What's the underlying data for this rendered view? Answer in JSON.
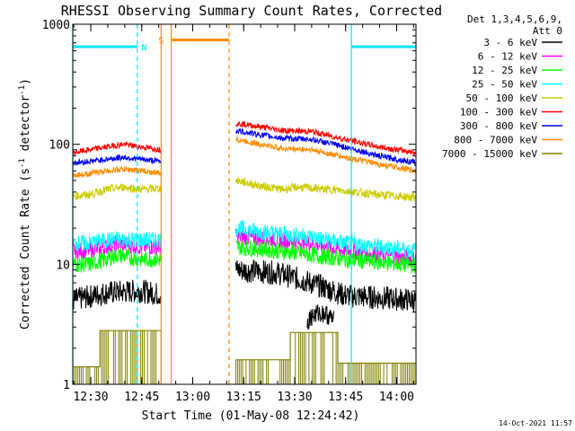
{
  "chart_data": {
    "type": "line",
    "title": "RHESSI Observing Summary Count Rates, Corrected",
    "xlabel": "Start Time (01-May-08 12:24:42)",
    "ylabel_parts": [
      "Corrected Count Rate (s",
      "-1",
      " detector",
      "-1",
      ")"
    ],
    "y_scale": "log",
    "ylim": [
      1,
      1000
    ],
    "xlim_minutes": [
      0,
      101
    ],
    "x_ticks": [
      {
        "t": 5.3,
        "label": "12:30"
      },
      {
        "t": 20.3,
        "label": "12:45"
      },
      {
        "t": 35.3,
        "label": "13:00"
      },
      {
        "t": 50.3,
        "label": "13:15"
      },
      {
        "t": 65.3,
        "label": "13:30"
      },
      {
        "t": 80.3,
        "label": "13:45"
      },
      {
        "t": 95.3,
        "label": "14:00"
      }
    ],
    "y_ticks": [
      {
        "v": 1,
        "label": "1"
      },
      {
        "v": 10,
        "label": "10"
      },
      {
        "v": 100,
        "label": "100"
      },
      {
        "v": 1000,
        "label": "1000"
      }
    ],
    "legend_header": [
      "Det 1,3,4,5,6,9,",
      "Att 0"
    ],
    "legend_placement": "right",
    "series": [
      {
        "name": "3 - 6 keV",
        "color": "#000000",
        "seg1": [
          [
            0,
            5.0
          ],
          [
            10,
            5.8
          ],
          [
            20,
            6.0
          ],
          [
            26,
            5.6
          ]
        ],
        "seg2": [
          [
            48,
            9.0
          ],
          [
            60,
            8.5
          ],
          [
            70,
            7.0
          ],
          [
            80,
            5.5
          ],
          [
            101,
            5.0
          ]
        ],
        "noise": 0.1
      },
      {
        "name": "6 - 12 keV",
        "color": "#ff00ff",
        "seg1": [
          [
            0,
            13
          ],
          [
            5,
            13
          ],
          [
            10,
            14
          ],
          [
            13,
            15
          ],
          [
            20,
            14
          ],
          [
            26,
            14
          ]
        ],
        "seg2": [
          [
            48,
            17
          ],
          [
            60,
            16
          ],
          [
            70,
            15
          ],
          [
            80,
            13
          ],
          [
            101,
            11
          ]
        ],
        "noise": 0.07
      },
      {
        "name": "12 - 25 keV",
        "color": "#00ff00",
        "seg1": [
          [
            0,
            10
          ],
          [
            5,
            10
          ],
          [
            10,
            11
          ],
          [
            13,
            12
          ],
          [
            20,
            11
          ],
          [
            26,
            11
          ]
        ],
        "seg2": [
          [
            48,
            14
          ],
          [
            60,
            13
          ],
          [
            70,
            12
          ],
          [
            80,
            11
          ],
          [
            101,
            9.8
          ]
        ],
        "noise": 0.07
      },
      {
        "name": "25 - 50 keV",
        "color": "#00ffff",
        "seg1": [
          [
            0,
            15
          ],
          [
            5,
            15
          ],
          [
            10,
            16
          ],
          [
            20,
            16
          ],
          [
            26,
            16
          ]
        ],
        "seg2": [
          [
            48,
            20
          ],
          [
            60,
            18
          ],
          [
            70,
            17
          ],
          [
            80,
            15
          ],
          [
            101,
            13
          ]
        ],
        "noise": 0.07
      },
      {
        "name": "50 - 100 keV",
        "color": "#cccc00",
        "seg1": [
          [
            0,
            37
          ],
          [
            5,
            38
          ],
          [
            10,
            42
          ],
          [
            15,
            44
          ],
          [
            20,
            42
          ],
          [
            26,
            43
          ]
        ],
        "seg2": [
          [
            48,
            50
          ],
          [
            55,
            45
          ],
          [
            62,
            42
          ],
          [
            66,
            44
          ],
          [
            70,
            43
          ],
          [
            80,
            41
          ],
          [
            90,
            38
          ],
          [
            101,
            36
          ]
        ],
        "noise": 0.035
      },
      {
        "name": "100 - 300 keV",
        "color": "#ff0000",
        "seg1": [
          [
            0,
            85
          ],
          [
            5,
            90
          ],
          [
            10,
            95
          ],
          [
            15,
            100
          ],
          [
            20,
            95
          ],
          [
            26,
            90
          ]
        ],
        "seg2": [
          [
            48,
            150
          ],
          [
            55,
            140
          ],
          [
            62,
            130
          ],
          [
            70,
            128
          ],
          [
            80,
            110
          ],
          [
            90,
            95
          ],
          [
            101,
            85
          ]
        ],
        "noise": 0.025
      },
      {
        "name": "300 - 800 keV",
        "color": "#0000ff",
        "seg1": [
          [
            0,
            70
          ],
          [
            5,
            72
          ],
          [
            10,
            75
          ],
          [
            15,
            78
          ],
          [
            20,
            75
          ],
          [
            26,
            72
          ]
        ],
        "seg2": [
          [
            48,
            130
          ],
          [
            55,
            120
          ],
          [
            62,
            112
          ],
          [
            70,
            110
          ],
          [
            80,
            95
          ],
          [
            90,
            80
          ],
          [
            101,
            70
          ]
        ],
        "noise": 0.025
      },
      {
        "name": "800 - 7000 keV",
        "color": "#ff8c00",
        "seg1": [
          [
            0,
            55
          ],
          [
            5,
            57
          ],
          [
            10,
            60
          ],
          [
            15,
            62
          ],
          [
            20,
            60
          ],
          [
            26,
            57
          ]
        ],
        "seg2": [
          [
            48,
            110
          ],
          [
            55,
            100
          ],
          [
            62,
            92
          ],
          [
            70,
            90
          ],
          [
            80,
            78
          ],
          [
            90,
            68
          ],
          [
            101,
            60
          ]
        ],
        "noise": 0.025
      },
      {
        "name": "7000 - 15000 keV",
        "color": "#808000",
        "seg1": [],
        "seg2": [],
        "noise": 0
      }
    ],
    "extra_series": [
      {
        "name": "3 - 6 keV",
        "color": "#000000",
        "seg": [
          [
            69,
            3.3
          ],
          [
            70,
            3.6
          ],
          [
            72,
            3.9
          ],
          [
            74,
            3.9
          ],
          [
            76,
            3.6
          ],
          [
            77,
            3.3
          ]
        ],
        "noise": 0.08
      }
    ],
    "olive_step": {
      "color": "#808000",
      "segs": [
        [
          [
            0,
            1.4
          ],
          [
            8,
            1.4
          ],
          [
            8,
            2.8
          ],
          [
            26,
            2.8
          ]
        ],
        [
          [
            48,
            1.6
          ],
          [
            64,
            1.6
          ],
          [
            64,
            2.7
          ],
          [
            78,
            2.7
          ],
          [
            78,
            1.5
          ],
          [
            101,
            1.5
          ]
        ]
      ]
    },
    "data_gap": {
      "from": 26,
      "to": 48
    },
    "annotations": [
      {
        "type": "bar",
        "label": "N",
        "color": "#00e5ff",
        "from": 0,
        "to": 19,
        "y": 650,
        "label_t": 21
      },
      {
        "type": "bar",
        "label": "",
        "color": "#00e5ff",
        "from": 82,
        "to": 101,
        "y": 650
      },
      {
        "type": "bar",
        "label": "S",
        "color": "#ff8c00",
        "from": 29,
        "to": 46,
        "y": 740,
        "label_t": 26
      }
    ],
    "vlines": [
      {
        "t": 0,
        "color": "#00e5ff",
        "style": "solid"
      },
      {
        "t": 19,
        "color": "#00e5ff",
        "style": "dashed"
      },
      {
        "t": 82,
        "color": "#00e5ff",
        "style": "solid"
      },
      {
        "t": 101,
        "color": "#00e5ff",
        "style": "dashed"
      },
      {
        "t": 26,
        "color": "#ff8c00",
        "style": "solid"
      },
      {
        "t": 29,
        "color": "#ff8c00",
        "style": "solid"
      },
      {
        "t": 46,
        "color": "#ff8c00",
        "style": "dashed"
      }
    ],
    "footer": "14-Oct-2021 11:57"
  }
}
